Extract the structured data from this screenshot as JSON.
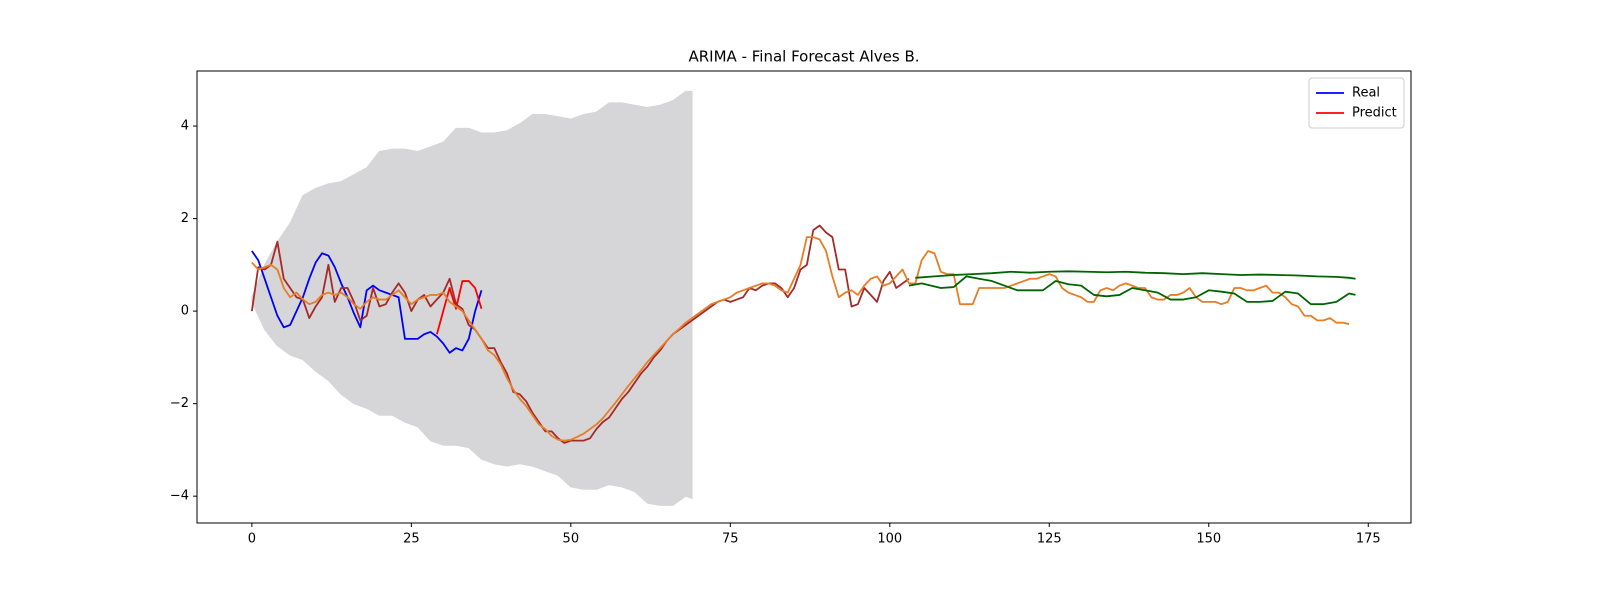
{
  "chart_data": {
    "type": "line",
    "title": "ARIMA - Final Forecast Alves B.",
    "xlim": [
      -8.6,
      181.7
    ],
    "ylim": [
      -4.58,
      5.19
    ],
    "xticks": [
      0,
      25,
      50,
      75,
      100,
      125,
      150,
      175
    ],
    "yticks": [
      {
        "value": -4,
        "label": "−4"
      },
      {
        "value": -2,
        "label": "−2"
      },
      0,
      2,
      4
    ],
    "legend": "upper right",
    "band": {
      "color": "#d6d6d8",
      "x": [
        0,
        2,
        4,
        6,
        8,
        10,
        12,
        14,
        16,
        18,
        20,
        22,
        24,
        26,
        28,
        30,
        32,
        34,
        36,
        38,
        40,
        42,
        44,
        46,
        48,
        50,
        52,
        54,
        56,
        58,
        60,
        62,
        64,
        66,
        68,
        69
      ],
      "upper": [
        0.3,
        1.0,
        1.5,
        1.9,
        2.5,
        2.65,
        2.75,
        2.8,
        2.95,
        3.1,
        3.45,
        3.5,
        3.5,
        3.45,
        3.55,
        3.65,
        3.95,
        3.95,
        3.85,
        3.85,
        3.9,
        4.05,
        4.25,
        4.25,
        4.2,
        4.15,
        4.25,
        4.3,
        4.5,
        4.5,
        4.45,
        4.4,
        4.45,
        4.55,
        4.75,
        4.75
      ],
      "lower": [
        0.2,
        -0.4,
        -0.75,
        -0.95,
        -1.05,
        -1.3,
        -1.5,
        -1.8,
        -2.0,
        -2.1,
        -2.25,
        -2.25,
        -2.4,
        -2.5,
        -2.8,
        -2.9,
        -2.9,
        -2.95,
        -3.2,
        -3.3,
        -3.35,
        -3.3,
        -3.35,
        -3.45,
        -3.55,
        -3.8,
        -3.85,
        -3.85,
        -3.75,
        -3.8,
        -3.9,
        -4.15,
        -4.2,
        -4.2,
        -4.0,
        -4.05
      ]
    },
    "series": [
      {
        "name": "Real",
        "color": "#0000ff",
        "x": [
          0,
          1,
          2,
          3,
          4,
          5,
          6,
          7,
          8,
          9,
          10,
          11,
          12,
          13,
          14,
          15,
          16,
          17,
          18,
          19,
          20,
          21,
          22,
          23,
          24,
          25,
          26,
          27,
          28,
          29,
          30,
          31,
          32,
          33,
          34,
          35,
          36
        ],
        "values": [
          1.3,
          1.1,
          0.7,
          0.3,
          -0.1,
          -0.35,
          -0.3,
          0,
          0.3,
          0.7,
          1.05,
          1.25,
          1.2,
          0.95,
          0.6,
          0.3,
          -0.05,
          -0.35,
          0.45,
          0.55,
          0.45,
          0.4,
          0.35,
          0.3,
          -0.6,
          -0.6,
          -0.6,
          -0.5,
          -0.45,
          -0.55,
          -0.7,
          -0.9,
          -0.8,
          -0.85,
          -0.6,
          0,
          0.45
        ]
      },
      {
        "name": "Predict",
        "color": "#ff0000",
        "x": [
          29,
          30,
          31,
          32,
          33,
          34,
          35,
          36
        ],
        "values": [
          -0.5,
          0.0,
          0.5,
          0.05,
          0.65,
          0.65,
          0.5,
          0.05
        ]
      },
      {
        "color": "#a52a2a",
        "x": [
          0,
          1,
          2,
          3,
          4,
          5,
          6,
          7,
          8,
          9,
          10,
          11,
          12,
          13,
          14,
          15,
          16,
          17,
          18,
          19,
          20,
          21,
          22,
          23,
          24,
          25,
          26,
          27,
          28,
          29,
          30,
          31,
          32,
          33,
          34,
          35,
          36,
          37,
          38,
          39,
          40,
          41,
          42,
          43,
          44,
          45,
          46,
          47,
          48,
          49,
          50,
          51,
          52,
          53,
          54,
          55,
          56,
          57,
          58,
          59,
          60,
          61,
          62,
          63,
          64,
          65,
          66,
          67,
          68,
          69,
          70,
          71,
          72,
          73,
          74,
          75,
          76,
          77,
          78,
          79,
          80,
          81,
          82,
          83,
          84,
          85,
          86,
          87,
          88,
          89,
          90,
          91,
          92,
          93,
          94,
          95,
          96,
          97,
          98,
          99,
          100,
          101,
          102,
          103
        ],
        "values": [
          0,
          0.95,
          0.9,
          1.0,
          1.5,
          0.7,
          0.5,
          0.3,
          0.25,
          -0.15,
          0.1,
          0.3,
          1.0,
          0.2,
          0.5,
          0.5,
          0.2,
          -0.2,
          -0.1,
          0.5,
          0.1,
          0.15,
          0.4,
          0.6,
          0.4,
          0.0,
          0.25,
          0.35,
          0.1,
          0.25,
          0.4,
          0.7,
          0.15,
          0.05,
          -0.3,
          -0.4,
          -0.6,
          -0.8,
          -0.8,
          -1.1,
          -1.35,
          -1.75,
          -1.8,
          -1.95,
          -2.2,
          -2.4,
          -2.6,
          -2.6,
          -2.75,
          -2.85,
          -2.8,
          -2.8,
          -2.8,
          -2.75,
          -2.55,
          -2.4,
          -2.3,
          -2.1,
          -1.9,
          -1.75,
          -1.55,
          -1.35,
          -1.2,
          -1.0,
          -0.85,
          -0.65,
          -0.5,
          -0.4,
          -0.3,
          -0.2,
          -0.1,
          0.0,
          0.1,
          0.2,
          0.25,
          0.2,
          0.25,
          0.3,
          0.5,
          0.45,
          0.55,
          0.6,
          0.6,
          0.5,
          0.3,
          0.5,
          0.9,
          1.0,
          1.75,
          1.85,
          1.7,
          1.6,
          0.9,
          0.9,
          0.1,
          0.15,
          0.5,
          0.35,
          0.2,
          0.65,
          0.85,
          0.5,
          0.6,
          0.7
        ]
      },
      {
        "color": "#e87d25",
        "x": [
          0,
          1,
          2,
          3,
          4,
          5,
          6,
          7,
          8,
          9,
          10,
          11,
          12,
          13,
          14,
          15,
          16,
          17,
          18,
          19,
          20,
          21,
          22,
          23,
          24,
          25,
          26,
          27,
          28,
          29,
          30,
          31,
          32,
          33,
          34,
          35,
          36,
          37,
          38,
          39,
          40,
          41,
          42,
          43,
          44,
          45,
          46,
          47,
          48,
          49,
          50,
          51,
          52,
          53,
          54,
          55,
          56,
          57,
          58,
          59,
          60,
          61,
          62,
          63,
          64,
          65,
          66,
          67,
          68,
          69,
          70,
          71,
          72,
          73,
          74,
          75,
          76,
          77,
          78,
          79,
          80,
          81,
          82,
          83,
          84,
          85,
          86,
          87,
          88,
          89,
          90,
          91,
          92,
          93,
          94,
          95,
          96,
          97,
          98,
          99,
          100,
          101,
          102,
          103,
          104,
          105,
          106,
          107,
          108,
          109,
          110,
          111,
          112,
          113,
          114,
          115,
          116,
          117,
          118,
          119,
          120,
          121,
          122,
          123,
          124,
          125,
          126,
          127,
          128,
          129,
          130,
          131,
          132,
          133,
          134,
          135,
          136,
          137,
          138,
          139,
          140,
          141,
          142,
          143,
          144,
          145,
          146,
          147,
          148,
          149,
          150,
          151,
          152,
          153,
          154,
          155,
          156,
          157,
          158,
          159,
          160,
          161,
          162,
          163,
          164,
          165,
          166,
          167,
          168,
          169,
          170,
          171,
          172
        ],
        "values": [
          1.05,
          0.9,
          0.95,
          1.0,
          0.9,
          0.5,
          0.3,
          0.4,
          0.25,
          0.15,
          0.2,
          0.35,
          0.4,
          0.35,
          0.4,
          0.3,
          0.15,
          0.05,
          0.2,
          0.3,
          0.25,
          0.25,
          0.35,
          0.45,
          0.3,
          0.15,
          0.25,
          0.3,
          0.35,
          0.35,
          0.4,
          0.2,
          0.1,
          0.0,
          -0.2,
          -0.4,
          -0.6,
          -0.85,
          -0.95,
          -1.15,
          -1.45,
          -1.7,
          -1.9,
          -2.05,
          -2.25,
          -2.45,
          -2.55,
          -2.7,
          -2.78,
          -2.8,
          -2.78,
          -2.72,
          -2.65,
          -2.55,
          -2.45,
          -2.32,
          -2.15,
          -1.98,
          -1.8,
          -1.62,
          -1.45,
          -1.28,
          -1.1,
          -0.95,
          -0.8,
          -0.65,
          -0.5,
          -0.38,
          -0.25,
          -0.15,
          -0.05,
          0.05,
          0.15,
          0.2,
          0.25,
          0.3,
          0.4,
          0.45,
          0.5,
          0.55,
          0.6,
          0.6,
          0.55,
          0.45,
          0.4,
          0.7,
          1.0,
          1.6,
          1.6,
          1.55,
          1.3,
          0.75,
          0.3,
          0.4,
          0.45,
          0.35,
          0.55,
          0.7,
          0.75,
          0.55,
          0.6,
          0.75,
          0.9,
          0.6,
          0.6,
          1.1,
          1.3,
          1.25,
          0.85,
          0.8,
          0.8,
          0.15,
          0.15,
          0.15,
          0.5,
          0.5,
          0.5,
          0.5,
          0.5,
          0.55,
          0.6,
          0.65,
          0.7,
          0.7,
          0.75,
          0.8,
          0.75,
          0.5,
          0.4,
          0.35,
          0.3,
          0.2,
          0.2,
          0.45,
          0.5,
          0.45,
          0.55,
          0.6,
          0.55,
          0.5,
          0.5,
          0.3,
          0.25,
          0.25,
          0.35,
          0.35,
          0.4,
          0.5,
          0.3,
          0.2,
          0.2,
          0.2,
          0.15,
          0.2,
          0.5,
          0.5,
          0.45,
          0.45,
          0.5,
          0.55,
          0.4,
          0.4,
          0.3,
          0.15,
          0.1,
          -0.1,
          -0.1,
          -0.2,
          -0.2,
          -0.15,
          -0.25,
          -0.25,
          -0.28
        ]
      },
      {
        "color": "#006400",
        "x": [
          103,
          105,
          108,
          110,
          112,
          114,
          116,
          120,
          124,
          126,
          128,
          130,
          132,
          134,
          136,
          138,
          140,
          142,
          144,
          146,
          148,
          150,
          152,
          154,
          156,
          158,
          160,
          162,
          164,
          166,
          168,
          170,
          172,
          173
        ],
        "values": [
          0.55,
          0.6,
          0.5,
          0.52,
          0.75,
          0.7,
          0.65,
          0.45,
          0.45,
          0.65,
          0.58,
          0.55,
          0.35,
          0.32,
          0.35,
          0.5,
          0.45,
          0.4,
          0.25,
          0.25,
          0.3,
          0.45,
          0.42,
          0.38,
          0.2,
          0.2,
          0.22,
          0.42,
          0.38,
          0.15,
          0.15,
          0.2,
          0.38,
          0.35
        ]
      },
      {
        "color": "#006400",
        "x": [
          104,
          107,
          110,
          113,
          116,
          119,
          122,
          125,
          128,
          131,
          134,
          137,
          140,
          143,
          146,
          149,
          152,
          155,
          158,
          161,
          164,
          167,
          170,
          172,
          173
        ],
        "values": [
          0.72,
          0.75,
          0.78,
          0.8,
          0.82,
          0.85,
          0.83,
          0.85,
          0.86,
          0.85,
          0.84,
          0.85,
          0.83,
          0.82,
          0.8,
          0.82,
          0.8,
          0.78,
          0.79,
          0.78,
          0.77,
          0.75,
          0.74,
          0.72,
          0.7
        ]
      }
    ]
  }
}
